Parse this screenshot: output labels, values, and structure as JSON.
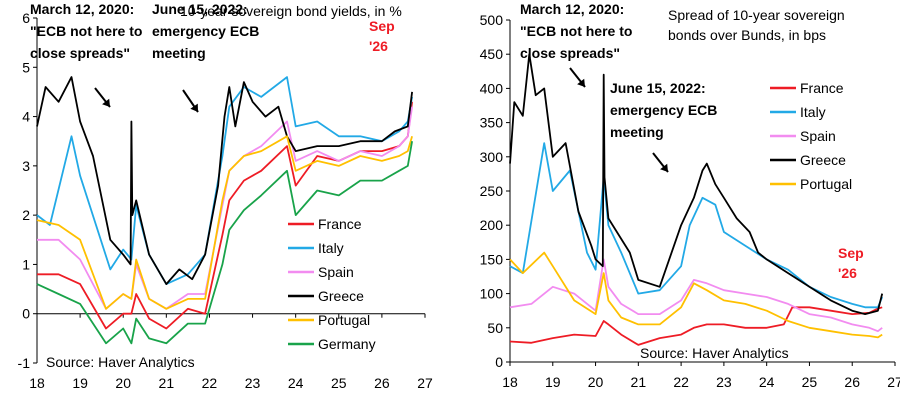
{
  "chart_data": [
    {
      "type": "line",
      "title": "10-year sovereign bond yields, in %",
      "xlabel": "",
      "ylabel": "",
      "xlim": [
        2018,
        2027
      ],
      "ylim": [
        -1,
        6
      ],
      "x_ticks": [
        "18",
        "19",
        "20",
        "21",
        "22",
        "23",
        "24",
        "25",
        "26",
        "27"
      ],
      "y_ticks": [
        "-1",
        "0",
        "1",
        "2",
        "3",
        "4",
        "5",
        "6"
      ],
      "source": "Source: Haver Analytics",
      "annotations": [
        {
          "lines": [
            "March 12, 2020:",
            "\"ECB not here to",
            "close spreads\""
          ]
        },
        {
          "lines": [
            "June 15, 2022:",
            "emergency ECB",
            "meeting"
          ]
        }
      ],
      "end_label": [
        "Sep",
        "'26"
      ],
      "end_label_color": "#ee1c25",
      "series": [
        {
          "name": "France",
          "color": "#ee1c25",
          "x": [
            2018.0,
            2018.5,
            2019.0,
            2019.6,
            2020.0,
            2020.19,
            2020.3,
            2020.6,
            2021.0,
            2021.5,
            2021.9,
            2022.3,
            2022.46,
            2022.8,
            2023.2,
            2023.8,
            2024.0,
            2024.5,
            2025.0,
            2025.5,
            2026.0,
            2026.4,
            2026.6,
            2026.7
          ],
          "y": [
            0.8,
            0.8,
            0.6,
            -0.3,
            0.0,
            0.0,
            0.4,
            -0.1,
            -0.3,
            0.1,
            0.0,
            1.6,
            2.3,
            2.7,
            2.9,
            3.4,
            2.6,
            3.2,
            3.1,
            3.3,
            3.3,
            3.4,
            3.6,
            4.3
          ]
        },
        {
          "name": "Italy",
          "color": "#22a9e6",
          "x": [
            2018.0,
            2018.3,
            2018.8,
            2019.0,
            2019.7,
            2020.0,
            2020.19,
            2020.3,
            2020.6,
            2021.0,
            2021.5,
            2021.9,
            2022.3,
            2022.46,
            2022.8,
            2023.2,
            2023.8,
            2024.0,
            2024.5,
            2025.0,
            2025.5,
            2026.0,
            2026.4,
            2026.6,
            2026.7
          ],
          "y": [
            2.0,
            1.8,
            3.6,
            2.8,
            0.9,
            1.3,
            1.1,
            2.2,
            1.2,
            0.6,
            0.8,
            1.2,
            3.2,
            4.2,
            4.6,
            4.4,
            4.8,
            3.8,
            3.9,
            3.6,
            3.6,
            3.5,
            3.7,
            3.9,
            4.4
          ]
        },
        {
          "name": "Spain",
          "color": "#f28cf0",
          "x": [
            2018.0,
            2018.5,
            2019.0,
            2019.6,
            2020.0,
            2020.19,
            2020.3,
            2020.6,
            2021.0,
            2021.5,
            2021.9,
            2022.3,
            2022.46,
            2022.8,
            2023.2,
            2023.8,
            2024.0,
            2024.5,
            2025.0,
            2025.5,
            2026.0,
            2026.4,
            2026.6,
            2026.7
          ],
          "y": [
            1.5,
            1.5,
            1.1,
            0.1,
            0.4,
            0.3,
            1.0,
            0.3,
            0.1,
            0.4,
            0.4,
            2.2,
            2.9,
            3.2,
            3.4,
            3.9,
            3.1,
            3.3,
            3.1,
            3.3,
            3.2,
            3.4,
            3.6,
            4.2
          ]
        },
        {
          "name": "Greece",
          "color": "#000000",
          "x": [
            2018.0,
            2018.2,
            2018.5,
            2018.8,
            2019.0,
            2019.3,
            2019.7,
            2020.0,
            2020.17,
            2020.19,
            2020.21,
            2020.3,
            2020.6,
            2021.0,
            2021.3,
            2021.6,
            2021.9,
            2022.2,
            2022.35,
            2022.46,
            2022.6,
            2022.8,
            2023.0,
            2023.3,
            2023.6,
            2023.8,
            2024.0,
            2024.5,
            2025.0,
            2025.5,
            2026.0,
            2026.3,
            2026.6,
            2026.7
          ],
          "y": [
            3.8,
            4.6,
            4.3,
            4.8,
            3.9,
            3.2,
            1.5,
            1.2,
            1.0,
            3.9,
            2.0,
            2.3,
            1.2,
            0.6,
            0.9,
            0.7,
            1.2,
            2.6,
            4.0,
            4.6,
            3.8,
            4.7,
            4.3,
            4.0,
            4.2,
            3.6,
            3.3,
            3.4,
            3.4,
            3.5,
            3.5,
            3.7,
            3.8,
            4.5
          ]
        },
        {
          "name": "Portugal",
          "color": "#ffc000",
          "x": [
            2018.0,
            2018.5,
            2019.0,
            2019.6,
            2020.0,
            2020.19,
            2020.3,
            2020.6,
            2021.0,
            2021.5,
            2021.9,
            2022.3,
            2022.46,
            2022.8,
            2023.2,
            2023.8,
            2024.0,
            2024.5,
            2025.0,
            2025.5,
            2026.0,
            2026.4,
            2026.6,
            2026.7
          ],
          "y": [
            1.9,
            1.8,
            1.5,
            0.1,
            0.4,
            0.3,
            1.1,
            0.3,
            0.1,
            0.3,
            0.3,
            2.3,
            2.9,
            3.2,
            3.3,
            3.6,
            2.9,
            3.1,
            3.0,
            3.2,
            3.1,
            3.2,
            3.3,
            3.6
          ]
        },
        {
          "name": "Germany",
          "color": "#19a34a",
          "x": [
            2018.0,
            2018.5,
            2019.0,
            2019.6,
            2020.0,
            2020.19,
            2020.3,
            2020.6,
            2021.0,
            2021.5,
            2021.9,
            2022.3,
            2022.46,
            2022.8,
            2023.2,
            2023.8,
            2024.0,
            2024.5,
            2025.0,
            2025.5,
            2026.0,
            2026.4,
            2026.6,
            2026.7
          ],
          "y": [
            0.6,
            0.4,
            0.2,
            -0.6,
            -0.3,
            -0.6,
            -0.1,
            -0.5,
            -0.6,
            -0.2,
            -0.2,
            1.0,
            1.7,
            2.1,
            2.4,
            2.9,
            2.0,
            2.5,
            2.4,
            2.7,
            2.7,
            2.9,
            3.0,
            3.5
          ]
        }
      ]
    },
    {
      "type": "line",
      "title": "Spread of 10-year sovereign bonds over Bunds, in bps",
      "title_lines": [
        "Spread of 10-year sovereign",
        "bonds over Bunds, in bps"
      ],
      "xlabel": "",
      "ylabel": "",
      "xlim": [
        2018,
        2027
      ],
      "ylim": [
        0,
        500
      ],
      "x_ticks": [
        "18",
        "19",
        "20",
        "21",
        "22",
        "23",
        "24",
        "25",
        "26",
        "27"
      ],
      "y_ticks": [
        "0",
        "50",
        "100",
        "150",
        "200",
        "250",
        "300",
        "350",
        "400",
        "450",
        "500"
      ],
      "source": "Source: Haver Analytics",
      "annotations": [
        {
          "lines": [
            "March 12, 2020:",
            "\"ECB not here to",
            "close spreads\""
          ]
        },
        {
          "lines": [
            "June 15, 2022:",
            "emergency ECB",
            "meeting"
          ]
        }
      ],
      "end_label": [
        "Sep",
        "'26"
      ],
      "end_label_color": "#ee1c25",
      "series": [
        {
          "name": "France",
          "color": "#ee1c25",
          "x": [
            2018.0,
            2018.5,
            2019.0,
            2019.5,
            2020.0,
            2020.19,
            2020.3,
            2020.6,
            2021.0,
            2021.5,
            2022.0,
            2022.3,
            2022.6,
            2023.0,
            2023.5,
            2024.0,
            2024.4,
            2024.6,
            2025.0,
            2025.5,
            2026.0,
            2026.4,
            2026.6,
            2026.7
          ],
          "y": [
            30,
            28,
            35,
            40,
            38,
            60,
            55,
            40,
            25,
            35,
            40,
            50,
            55,
            55,
            50,
            50,
            55,
            80,
            80,
            75,
            70,
            72,
            78,
            80
          ]
        },
        {
          "name": "Italy",
          "color": "#22a9e6",
          "x": [
            2018.0,
            2018.3,
            2018.8,
            2019.0,
            2019.4,
            2019.8,
            2020.0,
            2020.19,
            2020.3,
            2020.6,
            2021.0,
            2021.5,
            2022.0,
            2022.2,
            2022.5,
            2022.8,
            2023.0,
            2023.5,
            2024.0,
            2024.5,
            2025.0,
            2025.5,
            2026.0,
            2026.3,
            2026.6,
            2026.7
          ],
          "y": [
            140,
            130,
            320,
            250,
            280,
            160,
            135,
            270,
            200,
            160,
            100,
            105,
            140,
            200,
            240,
            230,
            190,
            170,
            150,
            135,
            110,
            95,
            85,
            80,
            80,
            95
          ]
        },
        {
          "name": "Spain",
          "color": "#f28cf0",
          "x": [
            2018.0,
            2018.5,
            2019.0,
            2019.5,
            2020.0,
            2020.19,
            2020.3,
            2020.6,
            2021.0,
            2021.5,
            2022.0,
            2022.3,
            2022.6,
            2023.0,
            2023.5,
            2024.0,
            2024.5,
            2025.0,
            2025.5,
            2026.0,
            2026.4,
            2026.6,
            2026.7
          ],
          "y": [
            80,
            85,
            110,
            100,
            75,
            150,
            110,
            85,
            70,
            70,
            90,
            120,
            115,
            105,
            100,
            95,
            85,
            70,
            65,
            55,
            50,
            45,
            50
          ]
        },
        {
          "name": "Greece",
          "color": "#000000",
          "x": [
            2018.0,
            2018.1,
            2018.3,
            2018.45,
            2018.6,
            2018.8,
            2019.0,
            2019.3,
            2019.6,
            2019.9,
            2020.0,
            2020.17,
            2020.19,
            2020.21,
            2020.3,
            2020.5,
            2020.8,
            2021.0,
            2021.5,
            2022.0,
            2022.3,
            2022.5,
            2022.6,
            2022.8,
            2023.0,
            2023.3,
            2023.6,
            2023.8,
            2024.0,
            2024.5,
            2025.0,
            2025.5,
            2026.0,
            2026.3,
            2026.6,
            2026.7
          ],
          "y": [
            290,
            380,
            360,
            450,
            390,
            400,
            300,
            320,
            220,
            170,
            150,
            140,
            420,
            270,
            210,
            190,
            160,
            120,
            110,
            200,
            240,
            280,
            290,
            260,
            240,
            210,
            190,
            160,
            150,
            130,
            110,
            90,
            75,
            70,
            75,
            100
          ]
        },
        {
          "name": "Portugal",
          "color": "#ffc000",
          "x": [
            2018.0,
            2018.3,
            2018.8,
            2019.0,
            2019.5,
            2020.0,
            2020.19,
            2020.3,
            2020.6,
            2021.0,
            2021.5,
            2022.0,
            2022.3,
            2022.6,
            2023.0,
            2023.5,
            2024.0,
            2024.5,
            2025.0,
            2025.5,
            2026.0,
            2026.4,
            2026.6,
            2026.7
          ],
          "y": [
            150,
            130,
            160,
            140,
            90,
            70,
            130,
            90,
            65,
            55,
            55,
            80,
            115,
            105,
            90,
            85,
            75,
            60,
            50,
            45,
            40,
            38,
            36,
            40
          ]
        }
      ]
    }
  ]
}
